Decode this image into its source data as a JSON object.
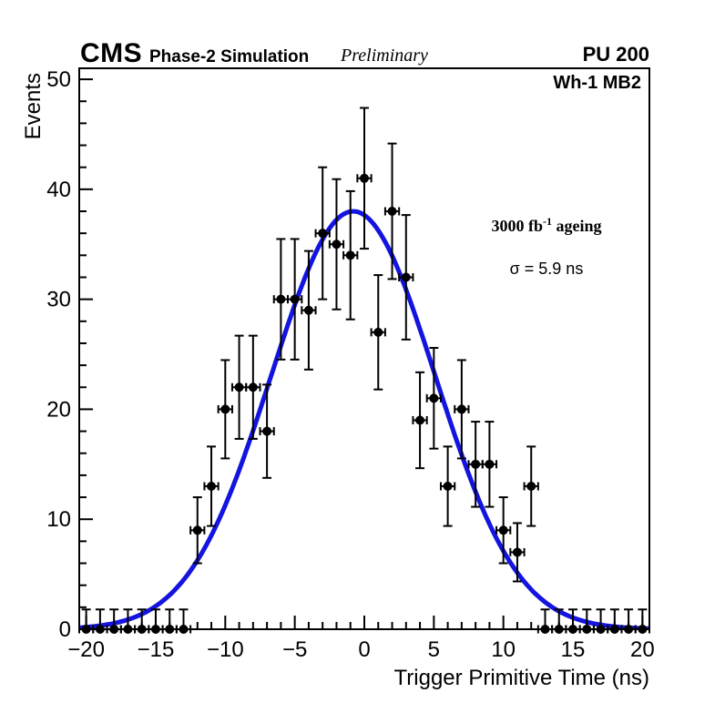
{
  "header": {
    "experiment": "CMS",
    "label": "Phase-2 Simulation",
    "sublabel": "Preliminary",
    "pileup": "PU 200"
  },
  "plot_labels": {
    "corner": "Wh-1 MB2",
    "ageing_main": "3000 fb",
    "ageing_sup": "-1",
    "ageing_tail": " ageing",
    "sigma_text": "σ = 5.9 ns"
  },
  "chart_data": {
    "type": "scatter",
    "title": "",
    "xlabel": "Trigger Primitive Time (ns)",
    "ylabel": "Events",
    "xlim": [
      -20.5,
      20.5
    ],
    "ylim": [
      0,
      51
    ],
    "grid": false,
    "legend_position": "none",
    "x_major_ticks": [
      -20,
      -15,
      -10,
      -5,
      0,
      5,
      10,
      15,
      20
    ],
    "x_tick_labels": [
      "−20",
      "−15",
      "−10",
      "−5",
      "0",
      "5",
      "10",
      "15",
      "20"
    ],
    "x_minor_step": 1,
    "y_major_ticks": [
      0,
      10,
      20,
      30,
      40,
      50
    ],
    "y_tick_labels": [
      "0",
      "10",
      "20",
      "30",
      "40",
      "50"
    ],
    "y_minor_step": 2,
    "points": {
      "x": [
        -20,
        -19,
        -18,
        -17,
        -16,
        -15,
        -14,
        -13,
        -12,
        -11,
        -10,
        -9,
        -8,
        -7,
        -6,
        -5,
        -4,
        -3,
        -2,
        -1,
        0,
        1,
        2,
        3,
        4,
        5,
        6,
        7,
        8,
        9,
        10,
        11,
        12,
        13,
        14,
        15,
        16,
        17,
        18,
        19,
        20
      ],
      "y": [
        0,
        0,
        0,
        0,
        0,
        0,
        0,
        0,
        9,
        13,
        20,
        22,
        22,
        18,
        30,
        30,
        29,
        36,
        35,
        34,
        41,
        27,
        38,
        32,
        19,
        21,
        13,
        20,
        15,
        15,
        9,
        7,
        13,
        0,
        0,
        0,
        0,
        0,
        0,
        0,
        0
      ],
      "y_err_up": [
        1.8,
        1.8,
        1.8,
        1.8,
        1.8,
        1.8,
        1.8,
        1.8,
        3,
        3.61,
        4.47,
        4.69,
        4.69,
        4.24,
        5.48,
        5.48,
        5.39,
        6,
        5.92,
        5.83,
        6.4,
        5.2,
        6.16,
        5.66,
        4.36,
        4.58,
        3.61,
        4.47,
        3.87,
        3.87,
        3,
        2.65,
        3.61,
        1.8,
        1.8,
        1.8,
        1.8,
        1.8,
        1.8,
        1.8,
        1.8
      ],
      "y_err_down": [
        0,
        0,
        0,
        0,
        0,
        0,
        0,
        0,
        3,
        3.61,
        4.47,
        4.69,
        4.69,
        4.24,
        5.48,
        5.48,
        5.39,
        6,
        5.92,
        5.83,
        6.4,
        5.2,
        6.16,
        5.66,
        4.36,
        4.58,
        3.61,
        4.47,
        3.87,
        3.87,
        3,
        2.65,
        3.61,
        0,
        0,
        0,
        0,
        0,
        0,
        0,
        0
      ],
      "x_err": 0.5,
      "marker_color": "#000000"
    },
    "fit": {
      "shape": "gaussian",
      "amplitude": 38,
      "mean": -0.8,
      "sigma": 5.9,
      "color": "#1414e0",
      "line_width": 5
    }
  }
}
